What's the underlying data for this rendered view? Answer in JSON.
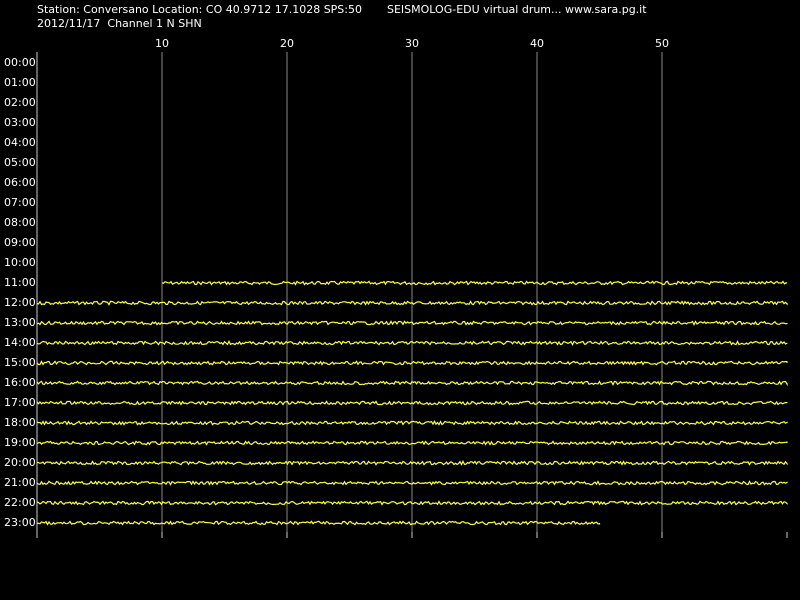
{
  "header": {
    "station": "Station: Conversano Location: CO 40.9712 17.1028 SPS:50",
    "program": "SEISMOLOG-EDU virtual drum... www.sara.pg.it",
    "date_channel": "2012/11/17  Channel 1 N SHN"
  },
  "drum": {
    "xlim": [
      0,
      60
    ],
    "xticks": [
      10,
      20,
      30,
      40,
      50
    ],
    "rows": [
      {
        "label": "00:00"
      },
      {
        "label": "01:00"
      },
      {
        "label": "02:00"
      },
      {
        "label": "03:00"
      },
      {
        "label": "04:00"
      },
      {
        "label": "05:00"
      },
      {
        "label": "06:00"
      },
      {
        "label": "07:00"
      },
      {
        "label": "08:00"
      },
      {
        "label": "09:00"
      },
      {
        "label": "10:00"
      },
      {
        "label": "11:00",
        "start": 10,
        "end": 60
      },
      {
        "label": "12:00",
        "start": 0,
        "end": 60
      },
      {
        "label": "13:00",
        "start": 0,
        "end": 60
      },
      {
        "label": "14:00",
        "start": 0,
        "end": 60
      },
      {
        "label": "15:00",
        "start": 0,
        "end": 60
      },
      {
        "label": "16:00",
        "start": 0,
        "end": 60
      },
      {
        "label": "17:00",
        "start": 0,
        "end": 60
      },
      {
        "label": "18:00",
        "start": 0,
        "end": 60
      },
      {
        "label": "19:00",
        "start": 0,
        "end": 60
      },
      {
        "label": "20:00",
        "start": 0,
        "end": 60
      },
      {
        "label": "21:00",
        "start": 0,
        "end": 60
      },
      {
        "label": "22:00",
        "start": 0,
        "end": 60
      },
      {
        "label": "23:00",
        "start": 0,
        "end": 45
      }
    ]
  }
}
